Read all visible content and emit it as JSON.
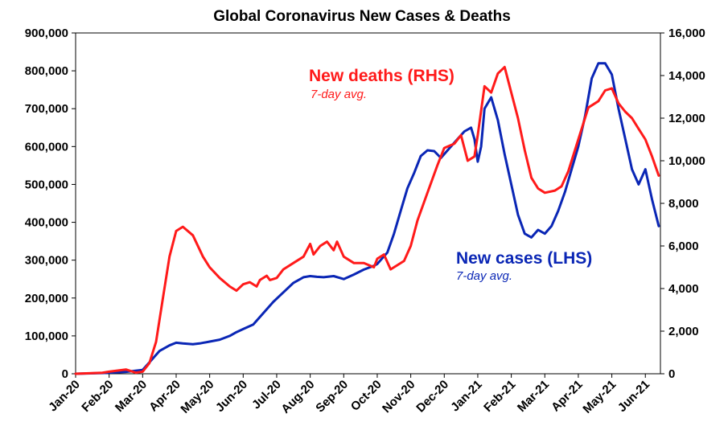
{
  "chart_data": {
    "type": "line",
    "title": "Global Coronavirus New Cases & Deaths",
    "xlabel": "",
    "ylabel": "",
    "y2label": "",
    "categories": [
      "Jan-20",
      "Feb-20",
      "Mar-20",
      "Apr-20",
      "May-20",
      "Jun-20",
      "Jul-20",
      "Aug-20",
      "Sep-20",
      "Oct-20",
      "Nov-20",
      "Dec-20",
      "Jan-21",
      "Feb-21",
      "Mar-21",
      "Apr-21",
      "May-21",
      "Jun-21"
    ],
    "ylim": [
      0,
      900000
    ],
    "y_ticks": [
      "900,000",
      "800,000",
      "700,000",
      "600,000",
      "500,000",
      "400,000",
      "300,000",
      "200,000",
      "100,000",
      "0"
    ],
    "y2lim": [
      0,
      16000
    ],
    "y2_ticks": [
      "16,000",
      "14,000",
      "12,000",
      "10,000",
      "8,000",
      "6,000",
      "4,000",
      "2,000",
      "0"
    ],
    "grid": false,
    "series": [
      {
        "name": "New cases (LHS)",
        "note": "7-day avg.",
        "axis": "left",
        "color": "#0a26b5",
        "x": [
          0,
          0.8,
          1,
          1.5,
          2,
          2.2,
          2.5,
          2.8,
          3.0,
          3.2,
          3.5,
          3.7,
          4.0,
          4.3,
          4.6,
          4.8,
          5.0,
          5.3,
          5.6,
          5.9,
          6.2,
          6.5,
          6.8,
          7.0,
          7.2,
          7.4,
          7.7,
          8.0,
          8.3,
          8.6,
          8.9,
          9.0,
          9.1,
          9.3,
          9.5,
          9.7,
          9.9,
          10.1,
          10.3,
          10.5,
          10.7,
          10.9,
          11.2,
          11.4,
          11.6,
          11.8,
          11.9,
          12.0,
          12.1,
          12.2,
          12.4,
          12.6,
          12.8,
          13.0,
          13.2,
          13.4,
          13.6,
          13.8,
          14.0,
          14.2,
          14.4,
          14.6,
          14.8,
          15.0,
          15.2,
          15.4,
          15.6,
          15.8,
          16.0,
          16.2,
          16.4,
          16.6,
          16.8,
          17.0,
          17.2,
          17.4
        ],
        "values": [
          0,
          2000,
          3000,
          5000,
          10000,
          30000,
          60000,
          75000,
          82000,
          80000,
          78000,
          80000,
          85000,
          90000,
          100000,
          110000,
          118000,
          130000,
          160000,
          190000,
          215000,
          240000,
          255000,
          258000,
          256000,
          255000,
          258000,
          250000,
          262000,
          275000,
          285000,
          290000,
          300000,
          320000,
          370000,
          430000,
          490000,
          530000,
          575000,
          590000,
          588000,
          570000,
          600000,
          620000,
          640000,
          650000,
          620000,
          560000,
          600000,
          700000,
          730000,
          670000,
          580000,
          500000,
          420000,
          370000,
          360000,
          380000,
          370000,
          390000,
          430000,
          480000,
          540000,
          600000,
          680000,
          780000,
          820000,
          820000,
          790000,
          700000,
          620000,
          540000,
          500000,
          540000,
          460000,
          390000
        ]
      },
      {
        "name": "New deaths (RHS)",
        "note": "7-day avg.",
        "axis": "right",
        "color": "#ff1a1a",
        "x": [
          0,
          0.8,
          1,
          1.5,
          1.8,
          2.0,
          2.2,
          2.4,
          2.6,
          2.8,
          3.0,
          3.2,
          3.5,
          3.8,
          4.0,
          4.3,
          4.6,
          4.8,
          5.0,
          5.2,
          5.4,
          5.5,
          5.7,
          5.8,
          6.0,
          6.2,
          6.5,
          6.8,
          7.0,
          7.1,
          7.3,
          7.5,
          7.7,
          7.8,
          8.0,
          8.3,
          8.6,
          8.9,
          9.0,
          9.2,
          9.4,
          9.6,
          9.8,
          10.0,
          10.2,
          10.5,
          10.8,
          11.0,
          11.3,
          11.5,
          11.7,
          11.9,
          12.0,
          12.2,
          12.4,
          12.6,
          12.8,
          13.0,
          13.2,
          13.4,
          13.6,
          13.8,
          14.0,
          14.3,
          14.5,
          14.7,
          15.0,
          15.3,
          15.6,
          15.8,
          16.0,
          16.2,
          16.4,
          16.6,
          16.8,
          17.0,
          17.2,
          17.4
        ],
        "values": [
          0,
          50,
          100,
          200,
          50,
          100,
          500,
          1500,
          3500,
          5500,
          6700,
          6900,
          6500,
          5500,
          5000,
          4500,
          4100,
          3900,
          4200,
          4300,
          4100,
          4400,
          4600,
          4400,
          4500,
          4900,
          5200,
          5500,
          6100,
          5600,
          6000,
          6200,
          5800,
          6200,
          5500,
          5200,
          5200,
          5000,
          5400,
          5600,
          4900,
          5100,
          5300,
          6000,
          7200,
          8500,
          9800,
          10600,
          10800,
          11200,
          10000,
          10200,
          11200,
          13500,
          13200,
          14100,
          14400,
          13200,
          12000,
          10500,
          9200,
          8700,
          8500,
          8600,
          8800,
          9500,
          11000,
          12500,
          12800,
          13300,
          13400,
          12700,
          12300,
          12000,
          11500,
          11000,
          10200,
          9300
        ]
      }
    ],
    "annotations": [
      {
        "text": "New deaths (RHS)",
        "sub": "7-day avg.",
        "color": "#ff1a1a"
      },
      {
        "text": "New cases (LHS)",
        "sub": "7-day avg.",
        "color": "#0a26b5"
      }
    ]
  }
}
